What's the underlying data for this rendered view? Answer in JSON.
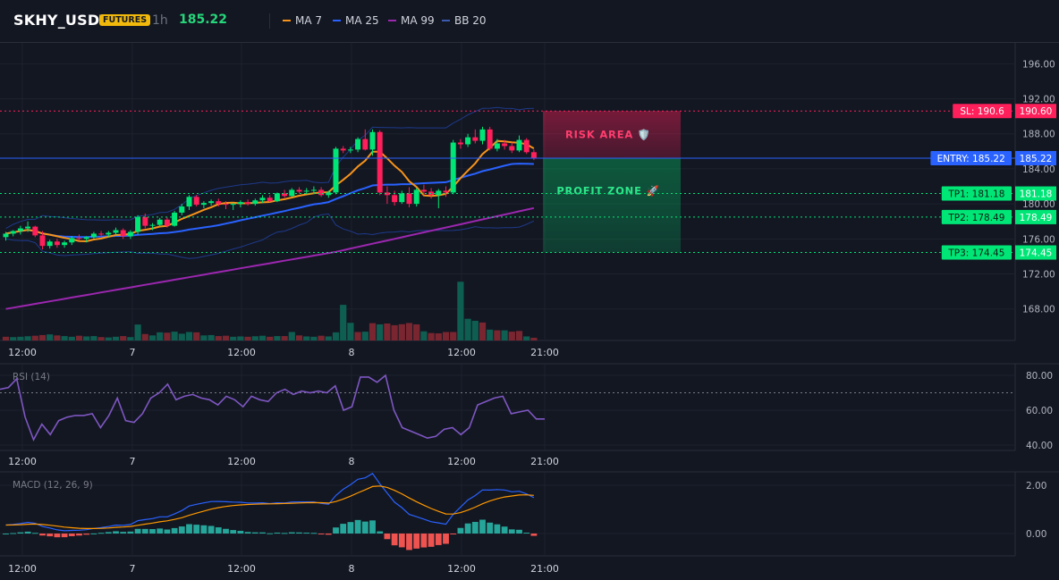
{
  "header": {
    "symbol": "SKHY_USDT",
    "badge": "FUTURES",
    "timeframe": "1h",
    "last_price": "185.22",
    "legend": [
      {
        "label": "MA 7",
        "color": "#f7931a"
      },
      {
        "label": "MA 25",
        "color": "#2962ff"
      },
      {
        "label": "MA 99",
        "color": "#9c27b0"
      },
      {
        "label": "BB 20",
        "color": "#1e3a8a"
      }
    ]
  },
  "colors": {
    "up": "#26a69a",
    "up_bright": "#00e676",
    "down": "#ef5350",
    "down_bright": "#ff1f5a",
    "bg": "#131722",
    "grid": "#1e222d"
  },
  "x_axis_labels": [
    "12:00",
    "7",
    "12:00",
    "8",
    "12:00",
    "21:00"
  ],
  "chart_data": [
    {
      "type": "candlestick",
      "y_ticks": [
        "196.00",
        "192.00",
        "188.00",
        "184.00",
        "180.00",
        "176.00",
        "172.00",
        "168.00"
      ],
      "ylim": [
        164.4,
        197.8
      ],
      "candles": [
        [
          176.2,
          176.8,
          175.8,
          176.6
        ],
        [
          176.6,
          177.0,
          176.3,
          176.9
        ],
        [
          176.9,
          177.5,
          176.5,
          177.2
        ],
        [
          177.2,
          178.0,
          176.8,
          177.4
        ],
        [
          177.4,
          177.5,
          176.2,
          176.4
        ],
        [
          176.4,
          176.9,
          174.8,
          175.2
        ],
        [
          175.2,
          175.9,
          174.9,
          175.7
        ],
        [
          175.7,
          176.0,
          175.0,
          175.3
        ],
        [
          175.3,
          175.8,
          175.0,
          175.6
        ],
        [
          175.6,
          176.3,
          175.3,
          176.1
        ],
        [
          176.1,
          176.5,
          175.8,
          176.0
        ],
        [
          176.0,
          176.3,
          175.6,
          176.2
        ],
        [
          176.2,
          176.8,
          176.0,
          176.6
        ],
        [
          176.6,
          176.9,
          176.3,
          176.5
        ],
        [
          176.5,
          176.9,
          176.2,
          176.7
        ],
        [
          176.7,
          177.3,
          176.4,
          177.0
        ],
        [
          177.0,
          177.2,
          176.0,
          176.3
        ],
        [
          176.3,
          177.0,
          176.0,
          176.8
        ],
        [
          176.8,
          178.7,
          176.5,
          178.5
        ],
        [
          178.5,
          178.9,
          177.2,
          177.5
        ],
        [
          177.5,
          177.8,
          177.0,
          177.6
        ],
        [
          177.6,
          178.4,
          177.4,
          178.2
        ],
        [
          178.2,
          178.5,
          177.3,
          177.5
        ],
        [
          177.5,
          179.2,
          177.4,
          179.0
        ],
        [
          179.0,
          180.0,
          178.7,
          179.7
        ],
        [
          179.7,
          181.0,
          179.3,
          180.8
        ],
        [
          180.8,
          181.0,
          179.7,
          179.9
        ],
        [
          179.9,
          180.3,
          179.5,
          180.1
        ],
        [
          180.1,
          180.5,
          179.8,
          180.3
        ],
        [
          180.3,
          180.6,
          179.7,
          180.0
        ],
        [
          180.0,
          180.3,
          179.4,
          179.9
        ],
        [
          179.9,
          180.1,
          179.3,
          180.0
        ],
        [
          180.0,
          180.4,
          179.6,
          180.2
        ],
        [
          180.2,
          180.5,
          179.8,
          180.0
        ],
        [
          180.0,
          180.6,
          179.8,
          180.4
        ],
        [
          180.4,
          181.0,
          180.1,
          180.7
        ],
        [
          180.7,
          181.0,
          180.2,
          180.3
        ],
        [
          180.3,
          181.3,
          180.2,
          181.2
        ],
        [
          181.2,
          181.6,
          180.7,
          180.9
        ],
        [
          180.9,
          181.8,
          180.8,
          181.6
        ],
        [
          181.6,
          181.9,
          181.2,
          181.4
        ],
        [
          181.4,
          181.8,
          181.1,
          181.5
        ],
        [
          181.5,
          182.0,
          181.2,
          181.6
        ],
        [
          181.6,
          181.9,
          180.8,
          181.0
        ],
        [
          181.0,
          181.5,
          180.7,
          181.3
        ],
        [
          181.3,
          186.5,
          181.1,
          186.3
        ],
        [
          186.3,
          186.6,
          185.8,
          186.1
        ],
        [
          186.1,
          186.5,
          185.8,
          186.2
        ],
        [
          186.2,
          187.6,
          185.9,
          187.4
        ],
        [
          187.4,
          188.5,
          186.1,
          186.2
        ],
        [
          186.2,
          188.5,
          185.5,
          188.2
        ],
        [
          188.2,
          188.4,
          181.0,
          181.3
        ],
        [
          181.3,
          182.0,
          180.0,
          181.0
        ],
        [
          181.0,
          181.5,
          179.8,
          180.2
        ],
        [
          180.2,
          181.5,
          180.0,
          181.2
        ],
        [
          181.2,
          181.9,
          179.6,
          180.0
        ],
        [
          180.0,
          181.8,
          179.7,
          181.6
        ],
        [
          181.6,
          182.2,
          181.0,
          181.4
        ],
        [
          181.4,
          181.8,
          180.6,
          181.0
        ],
        [
          181.0,
          181.7,
          179.5,
          181.5
        ],
        [
          181.5,
          182.0,
          180.8,
          181.3
        ],
        [
          181.3,
          187.3,
          181.1,
          187.0
        ],
        [
          187.0,
          187.4,
          186.3,
          186.8
        ],
        [
          186.8,
          188.0,
          186.5,
          187.6
        ],
        [
          187.6,
          188.5,
          186.9,
          187.2
        ],
        [
          187.2,
          188.8,
          186.8,
          188.5
        ],
        [
          188.5,
          188.8,
          186.1,
          186.3
        ],
        [
          186.3,
          187.4,
          186.0,
          186.9
        ],
        [
          186.9,
          187.3,
          186.2,
          186.6
        ],
        [
          186.6,
          187.0,
          185.8,
          186.1
        ],
        [
          186.1,
          187.8,
          185.9,
          187.3
        ],
        [
          187.3,
          187.5,
          185.7,
          185.9
        ],
        [
          185.9,
          186.2,
          185.0,
          185.2
        ]
      ],
      "volume": [
        [
          2.2,
          0
        ],
        [
          2.0,
          1
        ],
        [
          2.2,
          1
        ],
        [
          2.5,
          1
        ],
        [
          2.8,
          0
        ],
        [
          3.2,
          0
        ],
        [
          3.6,
          1
        ],
        [
          3.0,
          0
        ],
        [
          2.6,
          1
        ],
        [
          2.2,
          1
        ],
        [
          2.8,
          0
        ],
        [
          2.4,
          1
        ],
        [
          2.6,
          1
        ],
        [
          2.0,
          0
        ],
        [
          1.8,
          1
        ],
        [
          2.2,
          1
        ],
        [
          2.6,
          0
        ],
        [
          2.0,
          1
        ],
        [
          9.4,
          1
        ],
        [
          3.8,
          0
        ],
        [
          3.0,
          1
        ],
        [
          4.8,
          1
        ],
        [
          4.6,
          0
        ],
        [
          5.2,
          1
        ],
        [
          4.0,
          1
        ],
        [
          5.0,
          1
        ],
        [
          4.8,
          0
        ],
        [
          3.0,
          1
        ],
        [
          3.2,
          1
        ],
        [
          2.6,
          0
        ],
        [
          2.8,
          0
        ],
        [
          2.2,
          1
        ],
        [
          2.4,
          1
        ],
        [
          2.2,
          0
        ],
        [
          2.5,
          1
        ],
        [
          2.8,
          1
        ],
        [
          2.2,
          0
        ],
        [
          2.6,
          1
        ],
        [
          2.6,
          0
        ],
        [
          5.0,
          1
        ],
        [
          3.0,
          0
        ],
        [
          2.4,
          1
        ],
        [
          2.2,
          1
        ],
        [
          2.8,
          0
        ],
        [
          2.4,
          1
        ],
        [
          4.8,
          1
        ],
        [
          21.0,
          1
        ],
        [
          10.4,
          1
        ],
        [
          5.0,
          0
        ],
        [
          5.2,
          1
        ],
        [
          10.2,
          0
        ],
        [
          9.5,
          1
        ],
        [
          10.0,
          0
        ],
        [
          9.0,
          0
        ],
        [
          9.6,
          0
        ],
        [
          10.3,
          0
        ],
        [
          9.5,
          0
        ],
        [
          5.4,
          1
        ],
        [
          4.4,
          0
        ],
        [
          4.2,
          0
        ],
        [
          5.0,
          0
        ],
        [
          5.0,
          0
        ],
        [
          34.6,
          1
        ],
        [
          12.8,
          1
        ],
        [
          11.6,
          1
        ],
        [
          10.6,
          0
        ],
        [
          6.4,
          1
        ],
        [
          6.0,
          0
        ],
        [
          6.0,
          1
        ],
        [
          5.2,
          0
        ],
        [
          5.6,
          0
        ],
        [
          2.4,
          1
        ],
        [
          1.6,
          0
        ]
      ],
      "levels": [
        {
          "label": "SL: 190.6",
          "value_label": "190.60",
          "price": 190.6,
          "color": "#ff1f5a"
        },
        {
          "label": "ENTRY: 185.22",
          "value_label": "185.22",
          "price": 185.22,
          "color": "#2962ff"
        },
        {
          "label": "TP1: 181.18",
          "value_label": "181.18",
          "price": 181.18,
          "color": "#00e676"
        },
        {
          "label": "TP2: 178.49",
          "value_label": "178.49",
          "price": 178.49,
          "color": "#00e676"
        },
        {
          "label": "TP3: 174.45",
          "value_label": "174.45",
          "price": 174.45,
          "color": "#00e676"
        }
      ],
      "zones": [
        {
          "label": "RISK AREA 🛡️",
          "from": 190.6,
          "to": 185.22,
          "color": "#ff1f5a"
        },
        {
          "label": "PROFIT ZONE 🚀",
          "from": 185.22,
          "to": 174.45,
          "color": "#00e676"
        }
      ]
    },
    {
      "type": "line",
      "title": "RSI (14)",
      "y_ticks": [
        "80.00",
        "60.00",
        "40.00"
      ],
      "ylim": [
        36,
        86
      ],
      "reference": 70,
      "values": [
        72,
        73,
        78,
        56,
        43,
        52,
        46,
        54,
        56,
        57,
        57,
        58,
        50,
        57,
        67,
        54,
        53,
        58,
        67,
        70,
        75,
        66,
        68,
        69,
        67,
        66,
        63,
        68,
        66,
        62,
        68,
        66,
        65,
        70,
        72,
        69,
        71,
        70,
        71,
        70,
        74,
        60,
        62,
        79,
        79,
        76,
        80,
        60,
        50,
        48,
        46,
        44,
        45,
        49,
        50,
        46,
        50,
        63,
        65,
        67,
        68,
        58,
        59,
        60,
        55,
        55
      ]
    },
    {
      "type": "line",
      "title": "MACD (12, 26, 9)",
      "y_ticks": [
        "2.00",
        "0.00"
      ],
      "ylim": [
        -1.0,
        2.4
      ]
    }
  ]
}
